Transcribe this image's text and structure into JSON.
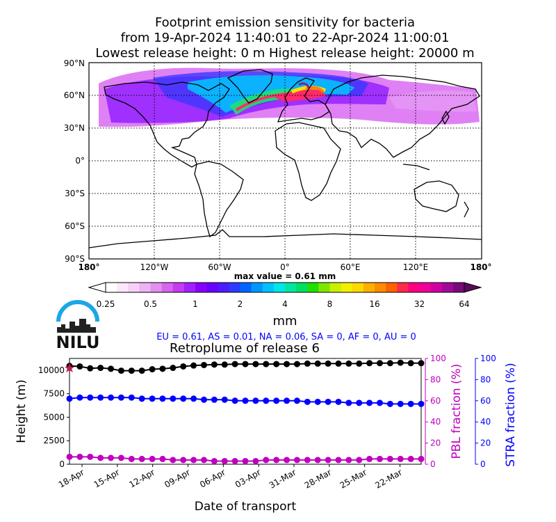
{
  "titles": {
    "line1": "Footprint emission sensitivity for bacteria",
    "line2": "from 19-Apr-2024 11:40:01 to 22-Apr-2024 11:00:01",
    "line3": "Lowest release height: 0 m       Highest release height: 20000 m"
  },
  "map": {
    "lat_labels": [
      "90°N",
      "60°N",
      "30°N",
      "0°",
      "30°S",
      "60°S",
      "90°S"
    ],
    "lon_labels": [
      "180°",
      "120°W",
      "60°W",
      "0°",
      "60°E",
      "120°E",
      "180°"
    ],
    "max_value_label": "max value = 0.61 mm"
  },
  "colorbar": {
    "ticks": [
      "0.25",
      "0.5",
      "1",
      "2",
      "4",
      "8",
      "16",
      "32",
      "64"
    ],
    "unit": "mm"
  },
  "logo": {
    "text": "NILU"
  },
  "fractions_line": "EU = 0.61,  AS = 0.01,  NA = 0.06,  SA = 0,  AF = 0,  AU = 0",
  "colors": {
    "height": "#000000",
    "pbl": "#bf00bf",
    "stra": "#0000ff",
    "logo_arc": "#1aa7e8"
  },
  "chart_data": {
    "type": "line",
    "title": "Retroplume of release 6",
    "xlabel": "Date of transport",
    "x_ticks": [
      "18-Apr",
      "15-Apr",
      "12-Apr",
      "09-Apr",
      "06-Apr",
      "03-Apr",
      "31-Mar",
      "28-Mar",
      "25-Mar",
      "22-Mar"
    ],
    "y_left": {
      "label": "Height (m)",
      "ticks": [
        "0",
        "2500",
        "5000",
        "7500",
        "10000"
      ],
      "ylim": [
        0,
        11250
      ]
    },
    "y_right1": {
      "label": "PBL fraction (%)",
      "ticks": [
        "0",
        "20",
        "40",
        "60",
        "80",
        "100"
      ],
      "ylim": [
        0,
        100
      ]
    },
    "y_right2": {
      "label": "STRA fraction (%)",
      "ticks": [
        "0",
        "20",
        "40",
        "60",
        "80",
        "100"
      ],
      "ylim": [
        0,
        100
      ]
    },
    "series": [
      {
        "axis": "left",
        "values": [
          10450,
          10400,
          10200,
          10250,
          10150,
          9950,
          9950,
          9950,
          10100,
          10150,
          10250,
          10400,
          10500,
          10550,
          10600,
          10600,
          10650,
          10650,
          10650,
          10650,
          10650,
          10650,
          10650,
          10700,
          10700,
          10700,
          10700,
          10700,
          10700,
          10750,
          10750,
          10750,
          10800,
          10750,
          10750
        ]
      },
      {
        "axis": "right1",
        "values": [
          7,
          7,
          7,
          6,
          6,
          6,
          5,
          5,
          5,
          5,
          4,
          4,
          4,
          4,
          3,
          3,
          3,
          3,
          3,
          4,
          4,
          4,
          4,
          4,
          4,
          4,
          4,
          4,
          4,
          5,
          5,
          5,
          5,
          5,
          5
        ]
      },
      {
        "axis": "right2",
        "values": [
          62,
          63,
          63,
          63,
          63,
          63,
          63,
          62,
          62,
          62,
          62,
          62,
          62,
          61,
          61,
          61,
          60,
          60,
          60,
          60,
          60,
          60,
          60,
          59,
          59,
          59,
          59,
          58,
          58,
          58,
          58,
          57,
          57,
          57,
          57
        ]
      }
    ]
  }
}
